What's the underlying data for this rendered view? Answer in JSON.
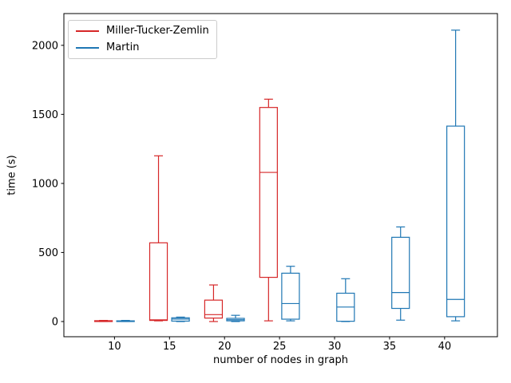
{
  "chart_data": {
    "type": "boxplot",
    "title": "",
    "xlabel": "number of nodes in graph",
    "ylabel": "time (s)",
    "x_ticks": [
      10,
      15,
      20,
      25,
      30,
      35,
      40
    ],
    "y_ticks": [
      0,
      500,
      1000,
      1500,
      2000
    ],
    "xlim": [
      5.4,
      44.8
    ],
    "ylim": [
      -110,
      2230
    ],
    "grid": false,
    "legend_position": "upper left",
    "box_width": 1.6,
    "series": [
      {
        "name": "Miller-Tucker-Zemlin",
        "color": "#d62728",
        "boxes": [
          {
            "x": 9,
            "whislo": 0,
            "q1": 0,
            "med": 4,
            "q3": 6,
            "whishi": 8
          },
          {
            "x": 14,
            "whislo": 5,
            "q1": 8,
            "med": 12,
            "q3": 570,
            "whishi": 1200
          },
          {
            "x": 19,
            "whislo": 0,
            "q1": 25,
            "med": 50,
            "q3": 155,
            "whishi": 265
          },
          {
            "x": 24,
            "whislo": 5,
            "q1": 320,
            "med": 1080,
            "q3": 1550,
            "whishi": 1610
          }
        ]
      },
      {
        "name": "Martin",
        "color": "#1f77b4",
        "boxes": [
          {
            "x": 11,
            "whislo": 0,
            "q1": 0,
            "med": 3,
            "q3": 5,
            "whishi": 8
          },
          {
            "x": 16,
            "whislo": 0,
            "q1": 3,
            "med": 18,
            "q3": 27,
            "whishi": 32
          },
          {
            "x": 21,
            "whislo": 0,
            "q1": 5,
            "med": 13,
            "q3": 23,
            "whishi": 45
          },
          {
            "x": 26,
            "whislo": 5,
            "q1": 17,
            "med": 130,
            "q3": 350,
            "whishi": 400
          },
          {
            "x": 31,
            "whislo": 0,
            "q1": 2,
            "med": 105,
            "q3": 205,
            "whishi": 310
          },
          {
            "x": 36,
            "whislo": 10,
            "q1": 95,
            "med": 210,
            "q3": 610,
            "whishi": 685
          },
          {
            "x": 41,
            "whislo": 5,
            "q1": 35,
            "med": 160,
            "q3": 1415,
            "whishi": 2110
          }
        ]
      }
    ]
  },
  "style": {
    "spine_color": "#000000",
    "tick_label_color": "#000000",
    "legend_border_color": "#cccccc"
  }
}
